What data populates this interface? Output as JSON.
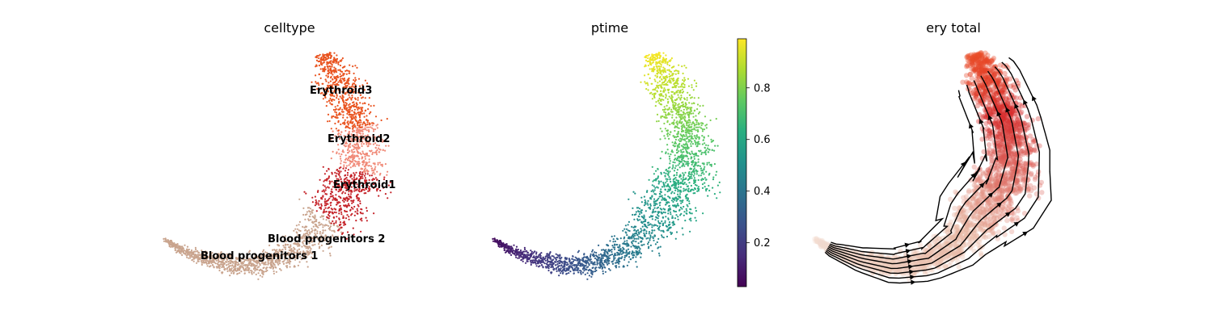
{
  "chart_data": [
    {
      "type": "scatter",
      "title": "celltype",
      "xlabel": "",
      "ylabel": "",
      "legend": "on data",
      "categories": [
        {
          "name": "Erythroid3",
          "color": "#e9531f"
        },
        {
          "name": "Erythroid2",
          "color": "#f08a78"
        },
        {
          "name": "Erythroid1",
          "color": "#c42127"
        },
        {
          "name": "Blood progenitors 2",
          "color": "#c9a48e"
        },
        {
          "name": "Blood progenitors 1",
          "color": "#c9a48e"
        }
      ]
    },
    {
      "type": "scatter",
      "title": "ptime",
      "xlabel": "",
      "ylabel": "",
      "colormap": "viridis",
      "colorbar": {
        "range": [
          0.03,
          0.99
        ],
        "ticks": [
          0.2,
          0.4,
          0.6,
          0.8
        ],
        "tick_labels": [
          "0.2",
          "0.4",
          "0.6",
          "0.8"
        ]
      }
    },
    {
      "type": "scatter",
      "title": "ery total",
      "xlabel": "",
      "ylabel": "",
      "overlay": "streamlines",
      "colors": {
        "low": "#f3ddd2",
        "mid": "#d62a2a",
        "high": "#ea4d28",
        "stream": "#000000"
      }
    }
  ]
}
